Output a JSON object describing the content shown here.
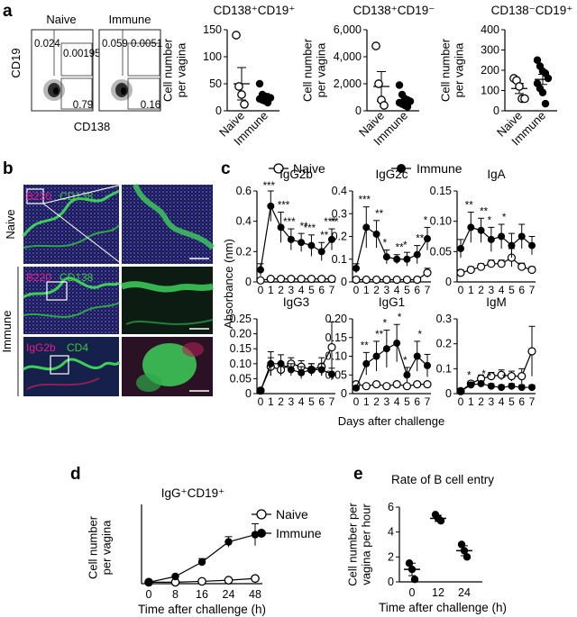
{
  "panel_labels": {
    "a": "a",
    "b": "b",
    "c": "c",
    "d": "d",
    "e": "e"
  },
  "panel_a": {
    "flow": {
      "x_label": "CD138",
      "y_label": "CD19",
      "plots": [
        {
          "title": "Naive",
          "top_left": "0.024",
          "top_right": "0.00195",
          "bottom_right": "0.79"
        },
        {
          "title": "Immune",
          "top_left": "0.059",
          "top_right": "0.0051",
          "bottom_right": "0.16"
        }
      ]
    }
  },
  "panel_b": {
    "group_labels": {
      "naive": "Naive",
      "immune": "Immune"
    },
    "images": [
      {
        "left_label": "B220",
        "right_label": "CD138",
        "left_color": "#e0208a",
        "right_color": "#3ec44a"
      },
      {
        "left_label": "B220",
        "right_label": "CD138",
        "left_color": "#e0208a",
        "right_color": "#3ec44a"
      },
      {
        "left_label": "IgG2b",
        "right_label": "CD4",
        "left_color": "#e0208a",
        "right_color": "#3ec44a"
      }
    ]
  },
  "panel_c": {
    "legend": {
      "naive": "Naive",
      "immune": "Immune"
    },
    "x_title": "Days after challenge",
    "y_title": "Absorbance (nm)"
  },
  "chart_data": [
    {
      "type": "scatter",
      "panel": "a",
      "title": "CD138⁺CD19⁺",
      "ylabel": "Cell number per vagina",
      "categories": [
        "Naive",
        "Immune"
      ],
      "ylim": [
        0,
        150
      ],
      "yticks": [
        "0",
        "50",
        "100",
        "150"
      ],
      "means": [
        50,
        25
      ],
      "sems": [
        30,
        7
      ],
      "series": [
        {
          "name": "Naive",
          "marker": "open",
          "values": [
            140,
            45,
            30,
            12
          ]
        },
        {
          "name": "Immune",
          "marker": "filled",
          "values": [
            50,
            30,
            27,
            25,
            24,
            22,
            20,
            18,
            15
          ]
        }
      ]
    },
    {
      "type": "scatter",
      "panel": "a",
      "title": "CD138⁺CD19⁻",
      "ylabel": "Cell number per vagina",
      "categories": [
        "Naive",
        "Immune"
      ],
      "ylim": [
        0,
        6000
      ],
      "yticks": [
        "0",
        "2,000",
        "4,000",
        "6,000"
      ],
      "means": [
        1800,
        750
      ],
      "sems": [
        1100,
        250
      ],
      "series": [
        {
          "name": "Naive",
          "marker": "open",
          "values": [
            4800,
            2000,
            800,
            400
          ]
        },
        {
          "name": "Immune",
          "marker": "filled",
          "values": [
            1900,
            1200,
            900,
            800,
            700,
            600,
            500,
            400,
            300
          ]
        }
      ]
    },
    {
      "type": "scatter",
      "panel": "a",
      "title": "CD138⁻CD19⁺",
      "ylabel": "Cell number per vagina",
      "categories": [
        "Naive",
        "Immune"
      ],
      "ylim": [
        0,
        400
      ],
      "yticks": [
        "0",
        "100",
        "200",
        "300",
        "400"
      ],
      "means": [
        110,
        155
      ],
      "sems": [
        25,
        25
      ],
      "series": [
        {
          "name": "Naive",
          "marker": "open",
          "values": [
            160,
            150,
            120,
            60,
            60
          ]
        },
        {
          "name": "Immune",
          "marker": "filled",
          "values": [
            250,
            220,
            195,
            185,
            160,
            135,
            110,
            90,
            35
          ]
        }
      ]
    },
    {
      "type": "line",
      "panel": "c",
      "title": "IgG2b",
      "x": [
        "0",
        "1",
        "2",
        "3",
        "4",
        "5",
        "6",
        "7"
      ],
      "ylim": [
        0,
        0.6
      ],
      "yticks": [
        "0",
        "0.2",
        "0.4",
        "0.6"
      ],
      "series": [
        {
          "name": "Naive",
          "values": [
            0.01,
            0.02,
            0.02,
            0.02,
            0.02,
            0.02,
            0.02,
            0.02
          ],
          "errors": [
            0.005,
            0.01,
            0.01,
            0.01,
            0.01,
            0.01,
            0.01,
            0.01
          ]
        },
        {
          "name": "Immune",
          "values": [
            0.08,
            0.5,
            0.36,
            0.28,
            0.26,
            0.24,
            0.2,
            0.28
          ],
          "errors": [
            0.04,
            0.1,
            0.1,
            0.07,
            0.06,
            0.07,
            0.06,
            0.07
          ]
        }
      ],
      "annotations": [
        "***",
        "***",
        "***",
        "**",
        "***",
        "**",
        "***",
        "**"
      ]
    },
    {
      "type": "line",
      "panel": "c",
      "title": "IgG2c",
      "x": [
        "0",
        "1",
        "2",
        "3",
        "4",
        "5",
        "6",
        "7"
      ],
      "ylim": [
        0,
        0.4
      ],
      "yticks": [
        "0",
        "0.1",
        "0.2",
        "0.3",
        "0.4"
      ],
      "series": [
        {
          "name": "Naive",
          "values": [
            0.01,
            0.01,
            0.01,
            0.01,
            0.01,
            0.01,
            0.01,
            0.04
          ],
          "errors": [
            0.005,
            0.005,
            0.005,
            0.005,
            0.005,
            0.005,
            0.005,
            0.02
          ]
        },
        {
          "name": "Immune",
          "values": [
            0.06,
            0.24,
            0.21,
            0.11,
            0.1,
            0.1,
            0.12,
            0.19
          ],
          "errors": [
            0.02,
            0.09,
            0.06,
            0.03,
            0.02,
            0.03,
            0.04,
            0.05
          ]
        }
      ],
      "annotations": [
        "***",
        "**",
        "*",
        "**",
        "*",
        "**",
        "*"
      ]
    },
    {
      "type": "line",
      "panel": "c",
      "title": "IgA",
      "x": [
        "0",
        "1",
        "2",
        "3",
        "4",
        "5",
        "6",
        "7"
      ],
      "ylim": [
        0,
        0.15
      ],
      "yticks": [
        "0",
        "0.05",
        "0.10",
        "0.15"
      ],
      "series": [
        {
          "name": "Naive",
          "values": [
            0.015,
            0.02,
            0.025,
            0.03,
            0.03,
            0.04,
            0.025,
            0.02
          ],
          "errors": [
            0.005,
            0.005,
            0.005,
            0.006,
            0.006,
            0.015,
            0.006,
            0.005
          ]
        },
        {
          "name": "Immune",
          "values": [
            0.055,
            0.09,
            0.085,
            0.07,
            0.075,
            0.06,
            0.075,
            0.06
          ],
          "errors": [
            0.015,
            0.025,
            0.02,
            0.02,
            0.02,
            0.02,
            0.02,
            0.015
          ]
        }
      ],
      "annotations": [
        "**",
        "**",
        "*",
        "*"
      ]
    },
    {
      "type": "line",
      "panel": "c",
      "title": "IgG3",
      "x": [
        "0",
        "1",
        "2",
        "3",
        "4",
        "5",
        "6",
        "7"
      ],
      "ylim": [
        0,
        0.25
      ],
      "yticks": [
        "0",
        "0.05",
        "0.10",
        "0.15",
        "0.20",
        "0.25"
      ],
      "series": [
        {
          "name": "Naive",
          "values": [
            0.01,
            0.09,
            0.08,
            0.1,
            0.09,
            0.08,
            0.09,
            0.155
          ],
          "errors": [
            0.005,
            0.03,
            0.02,
            0.02,
            0.02,
            0.02,
            0.03,
            0.085
          ]
        },
        {
          "name": "Immune",
          "values": [
            0.01,
            0.1,
            0.1,
            0.08,
            0.07,
            0.08,
            0.08,
            0.065
          ],
          "errors": [
            0.005,
            0.04,
            0.03,
            0.02,
            0.02,
            0.02,
            0.02,
            0.02
          ]
        }
      ],
      "annotations": []
    },
    {
      "type": "line",
      "panel": "c",
      "title": "IgG1",
      "x": [
        "0",
        "1",
        "2",
        "3",
        "4",
        "5",
        "6",
        "7"
      ],
      "ylim": [
        0,
        0.2
      ],
      "yticks": [
        "0",
        "0.05",
        "0.10",
        "0.15",
        "0.20"
      ],
      "series": [
        {
          "name": "Naive",
          "values": [
            0.025,
            0.02,
            0.025,
            0.02,
            0.025,
            0.02,
            0.025,
            0.025
          ],
          "errors": [
            0.005,
            0.005,
            0.005,
            0.005,
            0.005,
            0.005,
            0.005,
            0.005
          ]
        },
        {
          "name": "Immune",
          "values": [
            0.015,
            0.08,
            0.1,
            0.12,
            0.135,
            0.05,
            0.1,
            0.075
          ],
          "errors": [
            0.005,
            0.03,
            0.04,
            0.05,
            0.05,
            0.02,
            0.04,
            0.03
          ]
        }
      ],
      "annotations": [
        "**",
        "**",
        "*",
        "*",
        "*",
        "*"
      ]
    },
    {
      "type": "line",
      "panel": "c",
      "title": "IgM",
      "x": [
        "0",
        "1",
        "2",
        "3",
        "4",
        "5",
        "6",
        "7"
      ],
      "ylim": [
        0,
        0.3
      ],
      "yticks": [
        "0",
        "0.1",
        "0.2",
        "0.3"
      ],
      "series": [
        {
          "name": "Naive",
          "values": [
            0.01,
            0.04,
            0.06,
            0.07,
            0.075,
            0.07,
            0.07,
            0.17
          ],
          "errors": [
            0.005,
            0.01,
            0.015,
            0.015,
            0.02,
            0.02,
            0.03,
            0.1
          ]
        },
        {
          "name": "Immune",
          "values": [
            0.01,
            0.035,
            0.04,
            0.03,
            0.025,
            0.03,
            0.025,
            0.025
          ],
          "errors": [
            0.005,
            0.01,
            0.01,
            0.01,
            0.01,
            0.01,
            0.01,
            0.01
          ]
        }
      ],
      "annotations": [
        "*",
        "*",
        "*",
        "*"
      ]
    },
    {
      "type": "line",
      "panel": "d",
      "title": "IgG⁺CD19⁺",
      "xlabel": "Time after challenge (h)",
      "ylabel": "Cell number per vagina",
      "x": [
        "0",
        "8",
        "16",
        "24",
        "48"
      ],
      "ylim": [
        0,
        250
      ],
      "yticks": [
        "0",
        "50",
        "100",
        "150",
        "200",
        "250"
      ],
      "series": [
        {
          "name": "Naive",
          "values": [
            5,
            5,
            8,
            12,
            18
          ],
          "errors": [
            2,
            2,
            3,
            4,
            5
          ]
        },
        {
          "name": "Immune",
          "values": [
            5,
            25,
            75,
            145,
            170
          ],
          "errors": [
            3,
            6,
            12,
            18,
            38
          ]
        }
      ]
    },
    {
      "type": "bar",
      "panel": "e",
      "title": "Rate of B cell entry",
      "xlabel": "Time after challenge (h)",
      "ylabel": "Cell number per vagina per hour",
      "categories": [
        "0",
        "12",
        "24"
      ],
      "values": [
        1.0,
        5.1,
        2.5
      ],
      "errors": [
        0.5,
        0.25,
        0.4
      ],
      "points": [
        [
          1.5,
          1.0,
          0.2
        ],
        [
          5.4,
          5.1,
          4.9
        ],
        [
          3.0,
          2.5,
          2.0
        ]
      ],
      "ylim": [
        0,
        6
      ],
      "yticks": [
        "0",
        "2",
        "4",
        "6"
      ]
    }
  ]
}
